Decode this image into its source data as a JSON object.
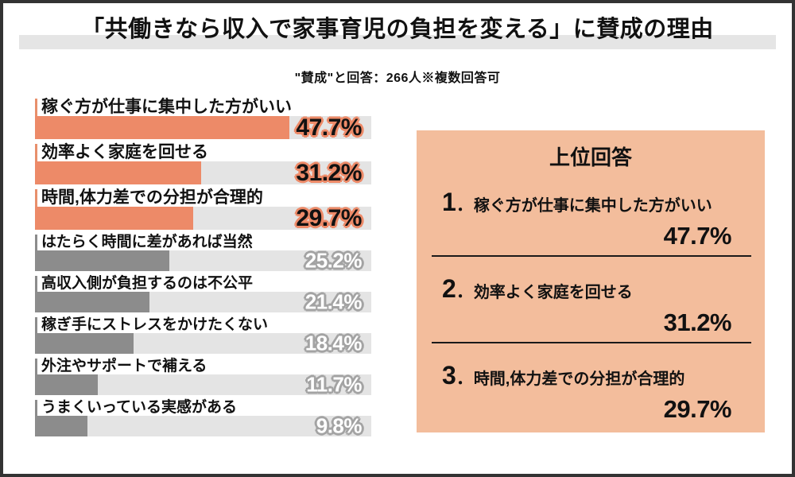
{
  "title": "「共働きなら収入で家事育児の負担を変える」に賛成の理由",
  "subtitle": "\"賛成\"と回答：266人※複数回答可",
  "colors": {
    "accent_bar": "#ED8A68",
    "panel_background": "#F3BD9C",
    "gray_bar": "#8C8C8C",
    "bar_track": "#E4E4E4",
    "title_band": "#E5E5E5",
    "page_border": "#333333",
    "text": "#111111"
  },
  "chart_data": {
    "type": "bar",
    "orientation": "horizontal",
    "title": "「共働きなら収入で家事育児の負担を変える」に賛成の理由",
    "subtitle": "\"賛成\"と回答：266人※複数回答可",
    "categories": [
      "稼ぐ方が仕事に集中した方がいい",
      "効率よく家庭を回せる",
      "時間,体力差での分担が合理的",
      "はたらく時間に差があれば当然",
      "高収入側が負担するのは不公平",
      "稼ぎ手にストレスをかけたくない",
      "外注やサポートで補える",
      "うまくいっている実感がある"
    ],
    "values": [
      47.7,
      31.2,
      29.7,
      25.2,
      21.4,
      18.4,
      11.7,
      9.8
    ],
    "value_labels": [
      "47.7%",
      "31.2%",
      "29.7%",
      "25.2%",
      "21.4%",
      "18.4%",
      "11.7%",
      "9.8%"
    ],
    "highlight_top": 3,
    "xlim": [
      0,
      63
    ],
    "grid": false,
    "legend": false
  },
  "panel": {
    "title": "上位回答",
    "rank_dot": "．",
    "items": [
      {
        "rank": "1",
        "label": "稼ぐ方が仕事に集中した方がいい",
        "value": "47.7%"
      },
      {
        "rank": "2",
        "label": "効率よく家庭を回せる",
        "value": "31.2%"
      },
      {
        "rank": "3",
        "label": "時間,体力差での分担が合理的",
        "value": "29.7%"
      }
    ]
  }
}
